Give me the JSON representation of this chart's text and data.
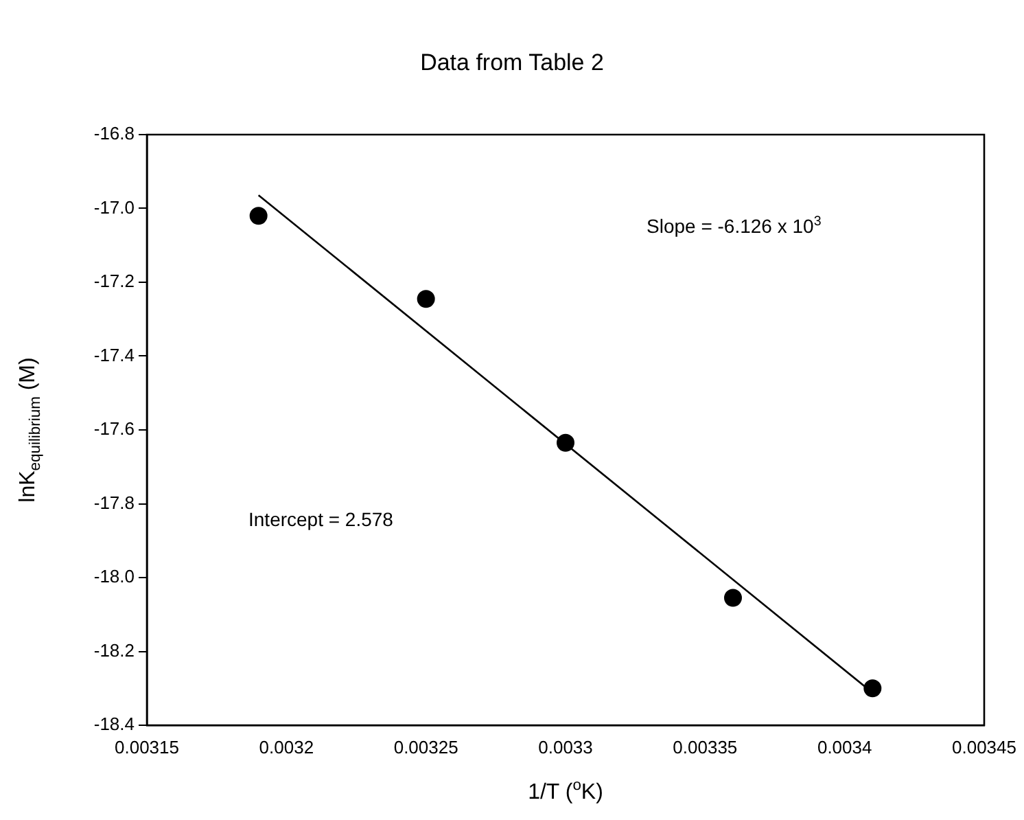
{
  "chart_data": {
    "type": "scatter",
    "title": "Data from Table 2",
    "xlabel": "1/T ($^{o}$K)",
    "ylabel": "lnK$_{equilibrium}$ (M)",
    "x": [
      0.00319,
      0.00325,
      0.0033,
      0.00336,
      0.00341
    ],
    "series": [
      {
        "color": "#000000",
        "marker": "circle",
        "values": [
          -17.02,
          -17.245,
          -17.635,
          -18.055,
          -18.3
        ]
      },
      {
        "type": "line",
        "color": "#000000",
        "marker": "none",
        "x": [
          0.00319,
          0.00341
        ],
        "values": [
          -16.964,
          -18.312
        ]
      }
    ],
    "xlim": [
      0.00315,
      0.00345
    ],
    "xticks": [
      0.00315,
      0.0032,
      0.00325,
      0.0033,
      0.00335,
      0.0034,
      0.00345
    ],
    "ylim": [
      -18.4,
      -16.8
    ],
    "yticks": [
      {
        "value": -18.4,
        "label": "-18.4"
      },
      {
        "value": -18.2,
        "label": "-18.2"
      },
      {
        "value": -18,
        "label": "-18.0"
      },
      {
        "value": -17.8,
        "label": "-17.8"
      },
      {
        "value": -17.6,
        "label": "-17.6"
      },
      {
        "value": -17.4,
        "label": "-17.4"
      },
      {
        "value": -17.2,
        "label": "-17.2"
      },
      {
        "value": -17,
        "label": "-17.0"
      },
      {
        "value": -16.8,
        "label": "-16.8"
      }
    ],
    "annotations": [
      "Slope = -6.126 x 10$^{3}$",
      "Intercept = 2.578"
    ],
    "grid": false,
    "legend": false
  }
}
